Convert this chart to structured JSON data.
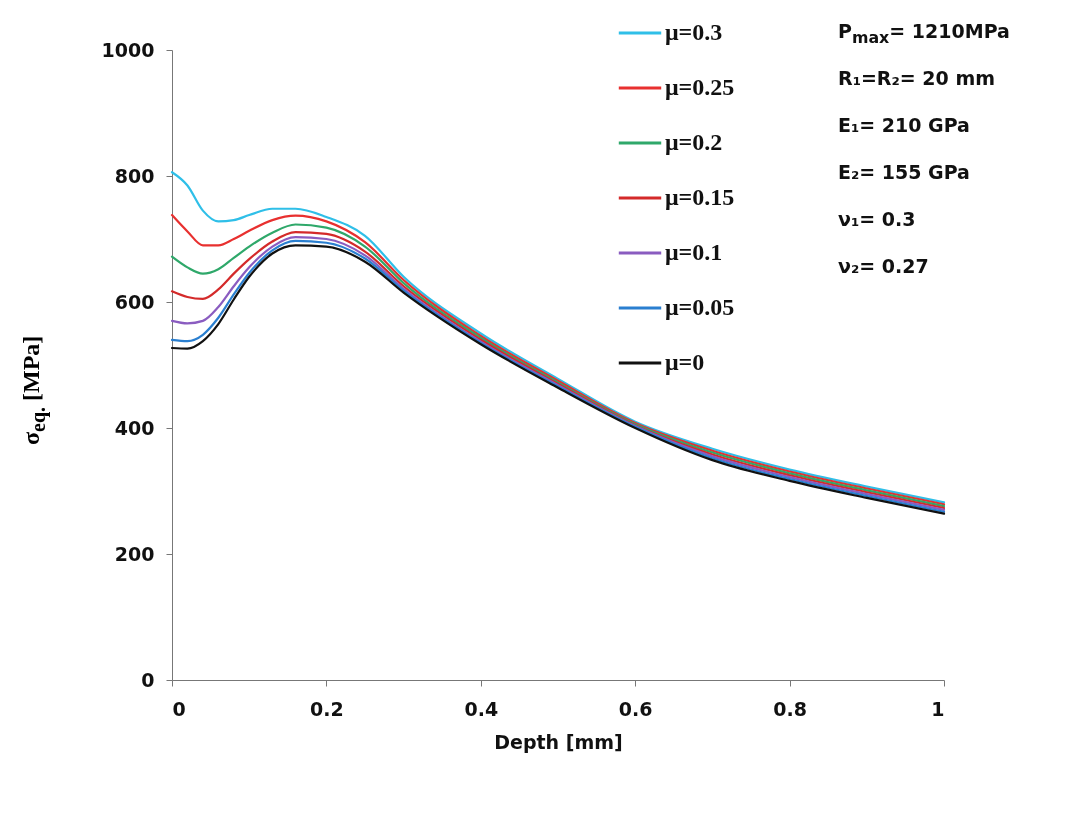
{
  "chart_data": {
    "type": "line",
    "xlabel": "Depth [mm]",
    "ylabel": "σ$_{eq.}$ [MPa]",
    "xlim": [
      0,
      1
    ],
    "xticks": [
      0,
      0.2,
      0.4,
      0.6,
      0.8,
      1
    ],
    "ylim": [
      0,
      1000
    ],
    "yticks": [
      0,
      200,
      400,
      600,
      800,
      1000
    ],
    "grid": false,
    "legend": "top right",
    "marker": "none",
    "line_style": "solid",
    "x": [
      0,
      0.02,
      0.04,
      0.06,
      0.08,
      0.1,
      0.13,
      0.16,
      0.2,
      0.25,
      0.3,
      0.4,
      0.5,
      0.6,
      0.7,
      0.8,
      0.9,
      1
    ],
    "series": [
      {
        "name": "μ=0.3",
        "color": "#2fbfe8",
        "values": [
          806,
          785,
          745,
          728,
          730,
          738,
          748,
          748,
          735,
          705,
          640,
          550,
          478,
          410,
          367,
          334,
          307,
          282
        ]
      },
      {
        "name": "μ=0.25",
        "color": "#e8302f",
        "values": [
          738,
          712,
          690,
          690,
          700,
          713,
          730,
          737,
          728,
          695,
          635,
          546,
          475,
          408,
          364,
          331,
          304,
          279
        ]
      },
      {
        "name": "μ=0.2",
        "color": "#2fa86a",
        "values": [
          672,
          655,
          645,
          652,
          670,
          688,
          710,
          723,
          718,
          688,
          630,
          543,
          472,
          406,
          361,
          328,
          301,
          276
        ]
      },
      {
        "name": "μ=0.15",
        "color": "#d42a2a",
        "values": [
          617,
          608,
          605,
          620,
          645,
          668,
          696,
          711,
          708,
          680,
          625,
          540,
          470,
          404,
          358,
          325,
          298,
          273
        ]
      },
      {
        "name": "μ=0.1",
        "color": "#8a5cc0",
        "values": [
          570,
          566,
          570,
          592,
          625,
          655,
          688,
          703,
          700,
          674,
          621,
          537,
          468,
          403,
          355,
          322,
          295,
          270
        ]
      },
      {
        "name": "μ=0.05",
        "color": "#2a7fd0",
        "values": [
          540,
          538,
          548,
          575,
          612,
          646,
          682,
          697,
          694,
          669,
          618,
          535,
          466,
          402,
          352,
          319,
          292,
          267
        ]
      },
      {
        "name": "μ=0",
        "color": "#111111",
        "values": [
          527,
          526,
          538,
          565,
          604,
          640,
          677,
          690,
          688,
          664,
          615,
          533,
          464,
          400,
          349,
          316,
          289,
          264
        ]
      }
    ],
    "annotations": [
      "P$_{max}$= 1210MPa",
      "R₁=R₂= 20 mm",
      "E₁= 210 GPa",
      "E₂= 155 GPa",
      "ν₁= 0.3",
      "ν₂= 0.27"
    ]
  }
}
